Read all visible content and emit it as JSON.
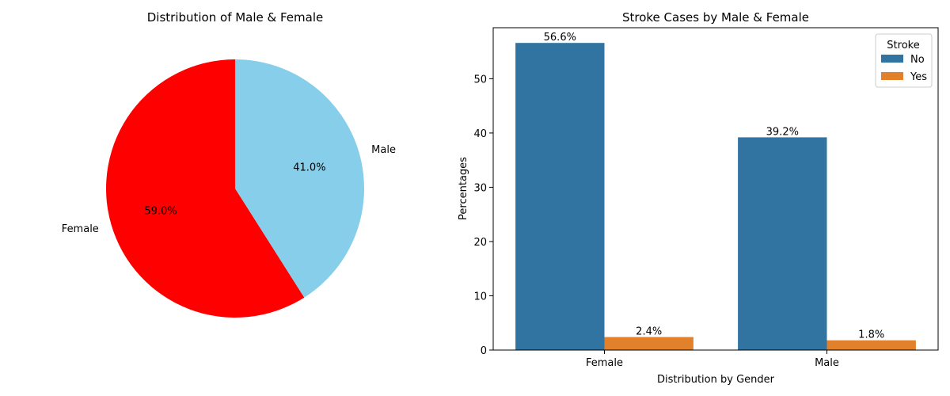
{
  "chart_data": [
    {
      "type": "pie",
      "title": "Distribution of Male & Female",
      "slices": [
        {
          "label": "Female",
          "value": 59.0,
          "pct_label": "59.0%",
          "color": "#ff0000"
        },
        {
          "label": "Male",
          "value": 41.0,
          "pct_label": "41.0%",
          "color": "#87ceeb"
        }
      ]
    },
    {
      "type": "bar",
      "title": "Stroke Cases by Male & Female",
      "xlabel": "Distribution by Gender",
      "ylabel": "Percentages",
      "categories": [
        "Female",
        "Male"
      ],
      "series": [
        {
          "name": "No",
          "values": [
            56.6,
            39.2
          ],
          "labels": [
            "56.6%",
            "39.2%"
          ],
          "color": "#3274a1"
        },
        {
          "name": "Yes",
          "values": [
            2.4,
            1.8
          ],
          "labels": [
            "2.4%",
            "1.8%"
          ],
          "color": "#e1812c"
        }
      ],
      "ylim": [
        0,
        59.4
      ],
      "yticks": [
        "0",
        "10",
        "20",
        "30",
        "40",
        "50"
      ],
      "legend": {
        "title": "Stroke",
        "placement": "top-right"
      },
      "grid": false
    }
  ]
}
